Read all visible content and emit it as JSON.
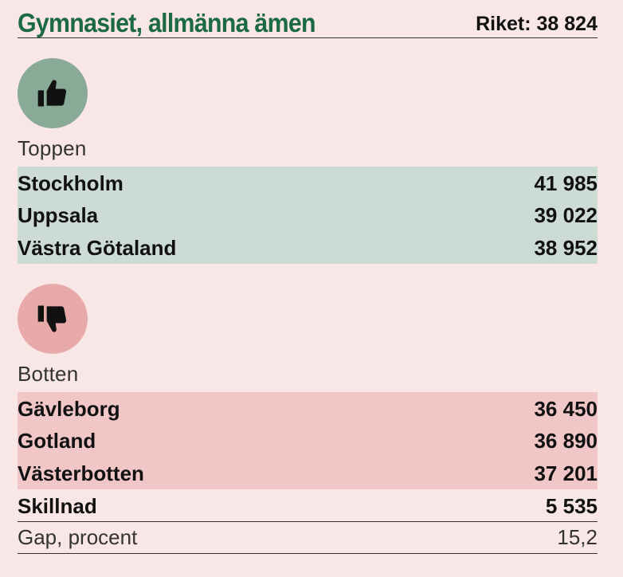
{
  "header": {
    "title": "Gymnasiet, allmänna ämen",
    "riket": "Riket: 38 824"
  },
  "top": {
    "icon": "thumbs-up-icon",
    "label": "Toppen",
    "rows": [
      {
        "name": "Stockholm",
        "value": "41 985"
      },
      {
        "name": "Uppsala",
        "value": "39 022"
      },
      {
        "name": "Västra Götaland",
        "value": "38 952"
      }
    ]
  },
  "bottom": {
    "icon": "thumbs-down-icon",
    "label": "Botten",
    "rows": [
      {
        "name": "Gävleborg",
        "value": "36 450"
      },
      {
        "name": "Gotland",
        "value": "36 890"
      },
      {
        "name": "Västerbotten",
        "value": "37 201"
      }
    ]
  },
  "summary": {
    "skillnad_label": "Skillnad",
    "skillnad_value": "5 535",
    "gap_label": "Gap, procent",
    "gap_value": "15,2"
  },
  "colors": {
    "title": "#1c6a43",
    "top_band": "#ccdbd4",
    "bottom_band": "#f1c6c6",
    "background": "#f9e6e6"
  }
}
